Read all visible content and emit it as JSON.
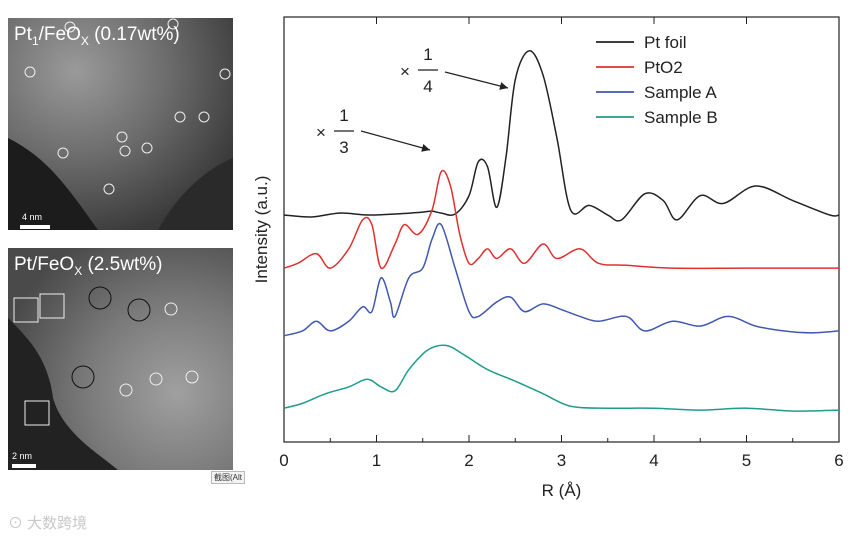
{
  "panels": {
    "top": {
      "label_prefix": "Pt",
      "label_sub1": "1",
      "label_mid": "/FeO",
      "label_sub2": "X",
      "label_suffix": " (0.17wt%)",
      "scale": "4 nm"
    },
    "bottom": {
      "label_prefix": "Pt/FeO",
      "label_sub": "X",
      "label_suffix": " (2.5wt%)",
      "scale": "2 nm"
    }
  },
  "crop_tag": "截图(Alt",
  "watermark": "大数跨境",
  "chart_data": {
    "type": "line",
    "xlabel": "R (Å)",
    "ylabel": "Intensity (a.u.)",
    "xlim": [
      0,
      6
    ],
    "x_ticks": [
      "0",
      "1",
      "2",
      "3",
      "4",
      "5",
      "6"
    ],
    "legend": {
      "placement": "top-right",
      "entries": [
        "Pt foil",
        "PtO2",
        "Sample A",
        "Sample B"
      ]
    },
    "annotations": [
      {
        "text": "× 1/4",
        "num": "1",
        "den": "4",
        "target_series": "Pt foil"
      },
      {
        "text": "× 1/3",
        "num": "1",
        "den": "3",
        "target_series": "PtO2"
      }
    ],
    "series": [
      {
        "name": "Pt foil",
        "color": "#222222",
        "points": [
          [
            0,
            0.0
          ],
          [
            0.3,
            -0.02
          ],
          [
            0.6,
            0.02
          ],
          [
            0.9,
            0.0
          ],
          [
            1.2,
            0.01
          ],
          [
            1.5,
            0.03
          ],
          [
            1.6,
            0.04
          ],
          [
            1.7,
            0.02
          ],
          [
            1.85,
            0.01
          ],
          [
            2.0,
            0.2
          ],
          [
            2.1,
            0.55
          ],
          [
            2.2,
            0.5
          ],
          [
            2.3,
            0.08
          ],
          [
            2.4,
            0.6
          ],
          [
            2.5,
            1.4
          ],
          [
            2.65,
            1.7
          ],
          [
            2.8,
            1.45
          ],
          [
            2.95,
            0.8
          ],
          [
            3.1,
            0.05
          ],
          [
            3.3,
            0.1
          ],
          [
            3.5,
            0.0
          ],
          [
            3.65,
            -0.05
          ],
          [
            3.9,
            0.22
          ],
          [
            4.1,
            0.15
          ],
          [
            4.25,
            -0.05
          ],
          [
            4.5,
            0.2
          ],
          [
            4.75,
            0.12
          ],
          [
            5.1,
            0.3
          ],
          [
            5.5,
            0.15
          ],
          [
            5.9,
            0.0
          ],
          [
            6.0,
            0.0
          ]
        ]
      },
      {
        "name": "PtO2",
        "color": "#e03030",
        "points": [
          [
            0,
            -0.55
          ],
          [
            0.15,
            -0.5
          ],
          [
            0.35,
            -0.4
          ],
          [
            0.5,
            -0.55
          ],
          [
            0.7,
            -0.35
          ],
          [
            0.85,
            -0.05
          ],
          [
            0.95,
            -0.1
          ],
          [
            1.05,
            -0.55
          ],
          [
            1.2,
            -0.3
          ],
          [
            1.3,
            -0.1
          ],
          [
            1.45,
            -0.2
          ],
          [
            1.6,
            0.05
          ],
          [
            1.7,
            0.45
          ],
          [
            1.8,
            0.3
          ],
          [
            1.9,
            -0.2
          ],
          [
            2.0,
            -0.5
          ],
          [
            2.1,
            -0.45
          ],
          [
            2.2,
            -0.35
          ],
          [
            2.3,
            -0.45
          ],
          [
            2.45,
            -0.35
          ],
          [
            2.6,
            -0.5
          ],
          [
            2.8,
            -0.3
          ],
          [
            2.95,
            -0.45
          ],
          [
            3.2,
            -0.35
          ],
          [
            3.4,
            -0.5
          ],
          [
            3.7,
            -0.52
          ],
          [
            4.2,
            -0.55
          ],
          [
            5.0,
            -0.55
          ],
          [
            6.0,
            -0.55
          ]
        ]
      },
      {
        "name": "Sample A",
        "color": "#4058b0",
        "points": [
          [
            0,
            -1.25
          ],
          [
            0.2,
            -1.2
          ],
          [
            0.35,
            -1.1
          ],
          [
            0.5,
            -1.2
          ],
          [
            0.7,
            -1.1
          ],
          [
            0.85,
            -0.95
          ],
          [
            0.95,
            -1.0
          ],
          [
            1.05,
            -0.65
          ],
          [
            1.15,
            -0.9
          ],
          [
            1.2,
            -1.05
          ],
          [
            1.35,
            -0.65
          ],
          [
            1.5,
            -0.55
          ],
          [
            1.6,
            -0.25
          ],
          [
            1.7,
            -0.1
          ],
          [
            1.85,
            -0.55
          ],
          [
            2.0,
            -1.0
          ],
          [
            2.1,
            -1.05
          ],
          [
            2.3,
            -0.9
          ],
          [
            2.45,
            -0.85
          ],
          [
            2.6,
            -1.0
          ],
          [
            2.8,
            -0.92
          ],
          [
            3.0,
            -0.98
          ],
          [
            3.2,
            -1.05
          ],
          [
            3.4,
            -1.1
          ],
          [
            3.7,
            -1.05
          ],
          [
            3.9,
            -1.2
          ],
          [
            4.2,
            -1.1
          ],
          [
            4.5,
            -1.15
          ],
          [
            4.8,
            -1.05
          ],
          [
            5.1,
            -1.15
          ],
          [
            5.4,
            -1.2
          ],
          [
            5.7,
            -1.22
          ],
          [
            6.0,
            -1.2
          ]
        ]
      },
      {
        "name": "Sample B",
        "color": "#1e9c8c",
        "points": [
          [
            0,
            -2.0
          ],
          [
            0.2,
            -1.95
          ],
          [
            0.45,
            -1.85
          ],
          [
            0.7,
            -1.78
          ],
          [
            0.9,
            -1.7
          ],
          [
            1.05,
            -1.78
          ],
          [
            1.2,
            -1.82
          ],
          [
            1.35,
            -1.6
          ],
          [
            1.55,
            -1.4
          ],
          [
            1.75,
            -1.35
          ],
          [
            1.95,
            -1.45
          ],
          [
            2.2,
            -1.6
          ],
          [
            2.5,
            -1.72
          ],
          [
            2.8,
            -1.85
          ],
          [
            3.1,
            -1.98
          ],
          [
            3.5,
            -2.0
          ],
          [
            4.0,
            -2.0
          ],
          [
            4.5,
            -2.02
          ],
          [
            5.0,
            -2.0
          ],
          [
            5.5,
            -2.03
          ],
          [
            6.0,
            -2.02
          ]
        ]
      }
    ]
  }
}
